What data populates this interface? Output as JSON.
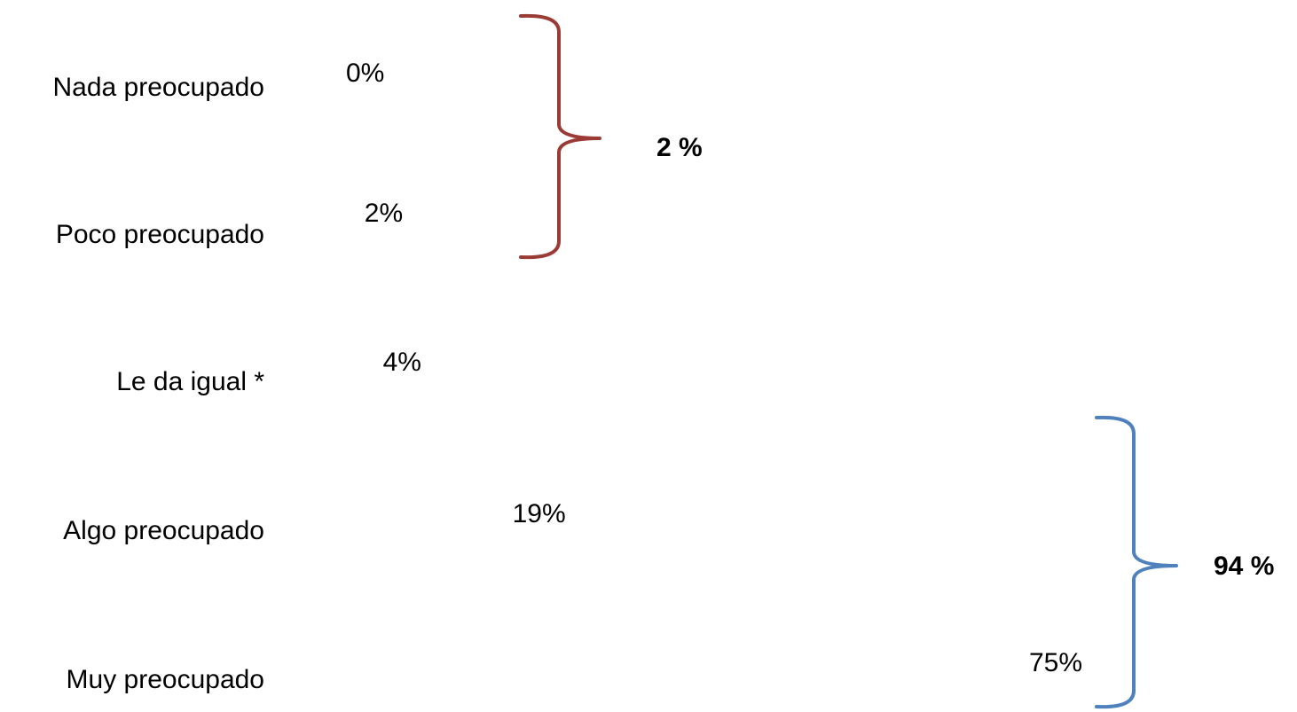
{
  "chart_data": {
    "type": "bar",
    "categories": [
      "Nada preocupado",
      "Poco preocupado",
      "Le da igual *",
      "Algo preocupado",
      "Muy preocupado"
    ],
    "values": [
      0,
      2,
      4,
      19,
      75
    ],
    "value_labels": [
      "0%",
      "2%",
      "4%",
      "19%",
      "75%"
    ],
    "xlabel": "",
    "ylabel": "",
    "xlim": [
      0,
      100
    ],
    "grid": false,
    "groups": [
      {
        "label": "2 %",
        "categories": [
          "Nada preocupado",
          "Poco preocupado"
        ],
        "color": "#9B3B36"
      },
      {
        "label": "94 %",
        "categories": [
          "Algo preocupado",
          "Muy preocupado"
        ],
        "color": "#4F81BD"
      }
    ]
  }
}
